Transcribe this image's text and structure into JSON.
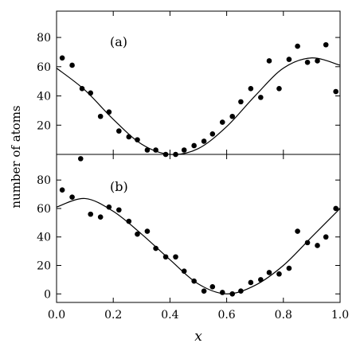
{
  "chart_data": {
    "type": "scatter",
    "xlabel": "x",
    "ylabel": "number of atoms",
    "xlim": [
      0.0,
      1.0
    ],
    "xticks": [
      "0.0",
      "0.2",
      "0.4",
      "0.6",
      "0.8",
      "1.0"
    ],
    "panels": [
      {
        "label": "(a)",
        "ylim": [
          0,
          98
        ],
        "yticks": [
          "20",
          "40",
          "60",
          "80"
        ],
        "series": [
          {
            "kind": "points",
            "x": [
              0.02,
              0.055,
              0.09,
              0.12,
              0.155,
              0.185,
              0.22,
              0.255,
              0.285,
              0.32,
              0.35,
              0.385,
              0.42,
              0.45,
              0.485,
              0.52,
              0.55,
              0.585,
              0.62,
              0.65,
              0.685,
              0.72,
              0.75,
              0.785,
              0.82,
              0.85,
              0.885,
              0.92,
              0.95,
              0.985
            ],
            "y": [
              66,
              61,
              45,
              42,
              26,
              29,
              16,
              12,
              10,
              3,
              3,
              0,
              0,
              3,
              6,
              9,
              14,
              22,
              26,
              36,
              45,
              39,
              64,
              45,
              65,
              74,
              63,
              64,
              75,
              43
            ]
          },
          {
            "kind": "line",
            "x": [
              0.0,
              0.1,
              0.2,
              0.3,
              0.4,
              0.5,
              0.6,
              0.7,
              0.8,
              0.9,
              1.0
            ],
            "y": [
              59,
              44,
              24,
              7,
              0,
              4,
              19,
              40,
              59,
              66,
              61
            ]
          }
        ]
      },
      {
        "label": "(b)",
        "ylim": [
          -6,
          98
        ],
        "yticks": [
          "0",
          "20",
          "40",
          "60",
          "80"
        ],
        "series": [
          {
            "kind": "points",
            "x": [
              0.02,
              0.055,
              0.085,
              0.12,
              0.155,
              0.185,
              0.22,
              0.255,
              0.285,
              0.32,
              0.35,
              0.385,
              0.42,
              0.45,
              0.485,
              0.52,
              0.55,
              0.585,
              0.62,
              0.65,
              0.685,
              0.72,
              0.75,
              0.785,
              0.82,
              0.85,
              0.885,
              0.92,
              0.95,
              0.985
            ],
            "y": [
              73,
              68,
              95,
              56,
              54,
              61,
              59,
              51,
              42,
              44,
              32,
              26,
              26,
              16,
              9,
              2,
              5,
              1,
              0,
              2,
              8,
              10,
              15,
              14,
              18,
              44,
              36,
              34,
              40,
              60
            ]
          },
          {
            "kind": "line",
            "x": [
              0.0,
              0.1,
              0.2,
              0.3,
              0.4,
              0.5,
              0.6,
              0.7,
              0.8,
              0.9,
              1.0
            ],
            "y": [
              61,
              67,
              58,
              42,
              24,
              7,
              0,
              6,
              20,
              40,
              60
            ]
          }
        ]
      }
    ]
  }
}
